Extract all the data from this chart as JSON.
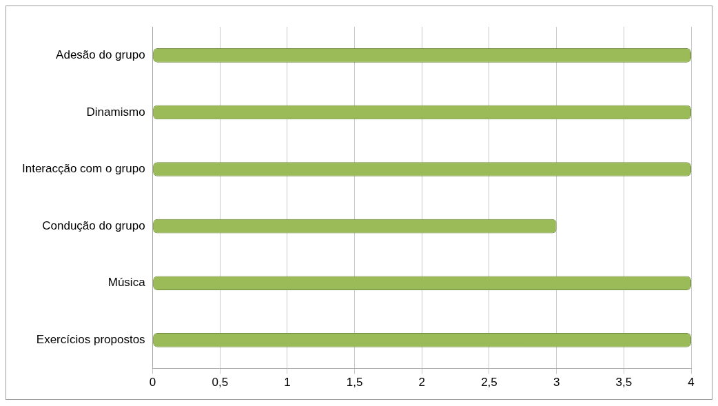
{
  "chart_data": {
    "type": "bar",
    "orientation": "horizontal",
    "categories": [
      "Adesão do grupo",
      "Dinamismo",
      "Interacção com o grupo",
      "Condução do grupo",
      "Música",
      "Exercícios propostos"
    ],
    "values": [
      4,
      4,
      4,
      3,
      4,
      4
    ],
    "color": "#9bbb59",
    "xlim": [
      0,
      4
    ],
    "xticks": [
      0,
      {
        "value": 0.5,
        "label": "0,5"
      },
      1,
      {
        "value": 1.5,
        "label": "1,5"
      },
      2,
      {
        "value": 2.5,
        "label": "2,5"
      },
      3,
      {
        "value": 3.5,
        "label": "3,5"
      },
      4
    ],
    "grid": "x",
    "legend": false
  }
}
